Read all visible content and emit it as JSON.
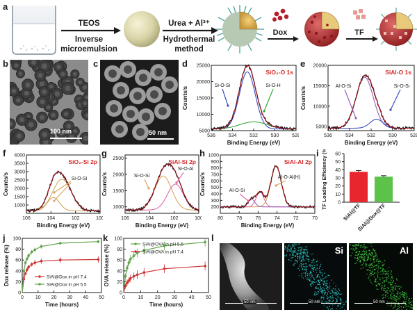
{
  "panel_letters": [
    "a",
    "b",
    "c",
    "d",
    "e",
    "f",
    "g",
    "h",
    "i",
    "j",
    "k",
    "l"
  ],
  "scheme": {
    "step1_top": "TEOS",
    "step1_bottom": [
      "Inverse",
      "microemulsion"
    ],
    "step2_top": "Urea + Al³⁺",
    "step2_bottom": [
      "Hydrothermal",
      "method"
    ],
    "dox_label": "Dox",
    "tf_label": "TF"
  },
  "micrographs": {
    "b_scale": "100 nm",
    "c_scale": "50 nm",
    "l_scales": [
      "50 nm",
      "50 nm",
      "50 nm"
    ],
    "l_maps": [
      "Si",
      "Al"
    ]
  },
  "colors": {
    "envelope": "#1a1a1a",
    "fit": "#b0121d",
    "comp_green": "#3aa33a",
    "comp_blue": "#3a4fbf",
    "comp_tan": "#d8a65c",
    "comp_pink": "#e06aa8",
    "comp_purple": "#9a5fb8",
    "bar_red": "#e8262d",
    "bar_green": "#5cc24a",
    "release_green": "#5fa64a",
    "release_red": "#cc3333"
  },
  "chart_data": [
    {
      "panel": "d",
      "type": "line",
      "title": "SiO₂-O 1s",
      "xlabel": "Binding Energy (eV)",
      "ylabel": "Counts/s",
      "xlim": [
        536,
        528
      ],
      "ylim": [
        5000,
        25000
      ],
      "xticks": [
        536,
        534,
        532,
        530,
        528
      ],
      "yticks": [
        5000,
        10000,
        15000,
        20000,
        25000
      ],
      "annotations": [
        "Si-O-Si",
        "Si-O-H"
      ],
      "peaks": [
        {
          "name": "Si-O-Si",
          "center": 532.6,
          "height": 17500,
          "sigma": 0.75
        },
        {
          "name": "Si-O-H",
          "center": 532.0,
          "height": 2200,
          "sigma": 1.3
        }
      ],
      "baseline": 5500
    },
    {
      "panel": "e",
      "type": "line",
      "title": "SiAl-O 1s",
      "xlabel": "Binding Energy (eV)",
      "ylabel": "Counts/s",
      "xlim": [
        536,
        528
      ],
      "ylim": [
        4000,
        20000
      ],
      "xticks": [
        536,
        534,
        532,
        530,
        528
      ],
      "yticks": [
        5000,
        10000,
        15000,
        20000
      ],
      "annotations": [
        "Al-O-Si",
        "Si-O-Si"
      ],
      "peaks": [
        {
          "name": "Al-O-Si",
          "center": 532.6,
          "height": 12500,
          "sigma": 0.8
        },
        {
          "name": "Si-O-Si",
          "center": 531.5,
          "height": 2200,
          "sigma": 0.6
        }
      ],
      "baseline": 4600
    },
    {
      "panel": "f",
      "type": "line",
      "title": "SiO₂-Si 2p",
      "xlabel": "Binding Energy (eV)",
      "ylabel": "Counts/s",
      "xlim": [
        106,
        100
      ],
      "ylim": [
        500,
        4000
      ],
      "xticks": [
        106,
        104,
        102,
        100
      ],
      "yticks": [
        1000,
        1500,
        2000,
        2500,
        3000,
        3500,
        4000
      ],
      "annotations": [
        "Si-O-Si"
      ],
      "peaks": [
        {
          "name": "Si-O-Si",
          "center": 103.1,
          "height": 1900,
          "sigma": 0.75
        },
        {
          "name": "Si-O-Si",
          "center": 103.8,
          "height": 800,
          "sigma": 0.5
        }
      ],
      "baseline": 650
    },
    {
      "panel": "g",
      "type": "line",
      "title": "SiAl-Si 2p",
      "xlabel": "Binding Energy (eV)",
      "ylabel": "Counts/s",
      "xlim": [
        106,
        100
      ],
      "ylim": [
        800,
        2600
      ],
      "xticks": [
        106,
        104,
        102,
        100
      ],
      "yticks": [
        1000,
        1500,
        2000,
        2500
      ],
      "annotations": [
        "Si-O-Si",
        "Si-O-Al"
      ],
      "peaks": [
        {
          "name": "Si-O-Si",
          "center": 102.9,
          "height": 1050,
          "sigma": 0.7
        },
        {
          "name": "Si-O-Al",
          "center": 101.9,
          "height": 800,
          "sigma": 0.65
        }
      ],
      "baseline": 900
    },
    {
      "panel": "h",
      "type": "line",
      "title": "SiAl-Al 2p",
      "xlabel": "Binding Energy (eV)",
      "ylabel": "Counts/s",
      "xlim": [
        80,
        70
      ],
      "ylim": [
        100,
        1000
      ],
      "xticks": [
        80,
        78,
        76,
        74,
        72,
        70
      ],
      "yticks": [
        200,
        300,
        400,
        500,
        600,
        700,
        800,
        900,
        1000
      ],
      "annotations": [
        "Al-O-Si",
        "Al-O-Al(H)"
      ],
      "peaks": [
        {
          "name": "Al-O-Al(H)",
          "center": 74.1,
          "height": 630,
          "sigma": 0.55
        },
        {
          "name": "Al-O-Si",
          "center": 75.8,
          "height": 230,
          "sigma": 0.4
        },
        {
          "name": "Al-O-Si",
          "center": 76.7,
          "height": 120,
          "sigma": 0.35
        }
      ],
      "baseline": 200
    },
    {
      "panel": "i",
      "type": "bar",
      "ylabel": "TF Loading Efficiency (%)",
      "categories": [
        "SiAl@TF",
        "SiAl@Dox@TF"
      ],
      "values": [
        37.5,
        31.5
      ],
      "errors": [
        1.5,
        1.2
      ],
      "ylim": [
        0,
        60
      ],
      "yticks": [
        0,
        10,
        20,
        30,
        40,
        50,
        60
      ]
    },
    {
      "panel": "j",
      "type": "line",
      "xlabel": "Time (hours)",
      "ylabel": "Dox release (%)",
      "xlim": [
        0,
        50
      ],
      "ylim": [
        0,
        100
      ],
      "xticks": [
        0,
        10,
        20,
        30,
        40,
        50
      ],
      "yticks": [
        0,
        20,
        40,
        60,
        80,
        100
      ],
      "legend": "bottom-right",
      "series": [
        {
          "name": "SiAl@Dox in pH 7.4",
          "x": [
            0,
            1,
            2,
            3,
            4,
            6,
            8,
            12,
            24,
            48
          ],
          "y": [
            0,
            25,
            35,
            42,
            47,
            52,
            55,
            58,
            60,
            61
          ],
          "err": [
            0,
            3,
            3,
            4,
            4,
            4,
            5,
            5,
            5,
            6
          ]
        },
        {
          "name": "SiAl@Dox in pH 5.5",
          "x": [
            0,
            1,
            2,
            3,
            4,
            6,
            8,
            12,
            24,
            48
          ],
          "y": [
            0,
            40,
            55,
            62,
            68,
            75,
            79,
            85,
            91,
            94
          ],
          "err": [
            0,
            3,
            3,
            4,
            4,
            4,
            4,
            4,
            3,
            3
          ]
        }
      ]
    },
    {
      "panel": "k",
      "type": "line",
      "xlabel": "Time (hours)",
      "ylabel": "OVA release (%)",
      "xlim": [
        0,
        50
      ],
      "ylim": [
        0,
        100
      ],
      "xticks": [
        0,
        10,
        20,
        30,
        40,
        50
      ],
      "yticks": [
        0,
        20,
        40,
        60,
        80,
        100
      ],
      "legend": "top-left",
      "series": [
        {
          "name": "SiAl@OVA in pH 5.5",
          "x": [
            0,
            1,
            2,
            3,
            4,
            6,
            8,
            12,
            24,
            48
          ],
          "y": [
            0,
            30,
            45,
            55,
            62,
            68,
            73,
            78,
            86,
            93
          ],
          "err": [
            0,
            5,
            6,
            6,
            7,
            7,
            8,
            8,
            8,
            8
          ]
        },
        {
          "name": "SiAl@OVA in pH 7.4",
          "x": [
            0,
            1,
            2,
            3,
            4,
            6,
            8,
            12,
            24,
            48
          ],
          "y": [
            0,
            12,
            18,
            22,
            26,
            30,
            33,
            37,
            44,
            49
          ],
          "err": [
            0,
            5,
            6,
            6,
            7,
            7,
            8,
            8,
            8,
            8
          ]
        }
      ]
    }
  ]
}
